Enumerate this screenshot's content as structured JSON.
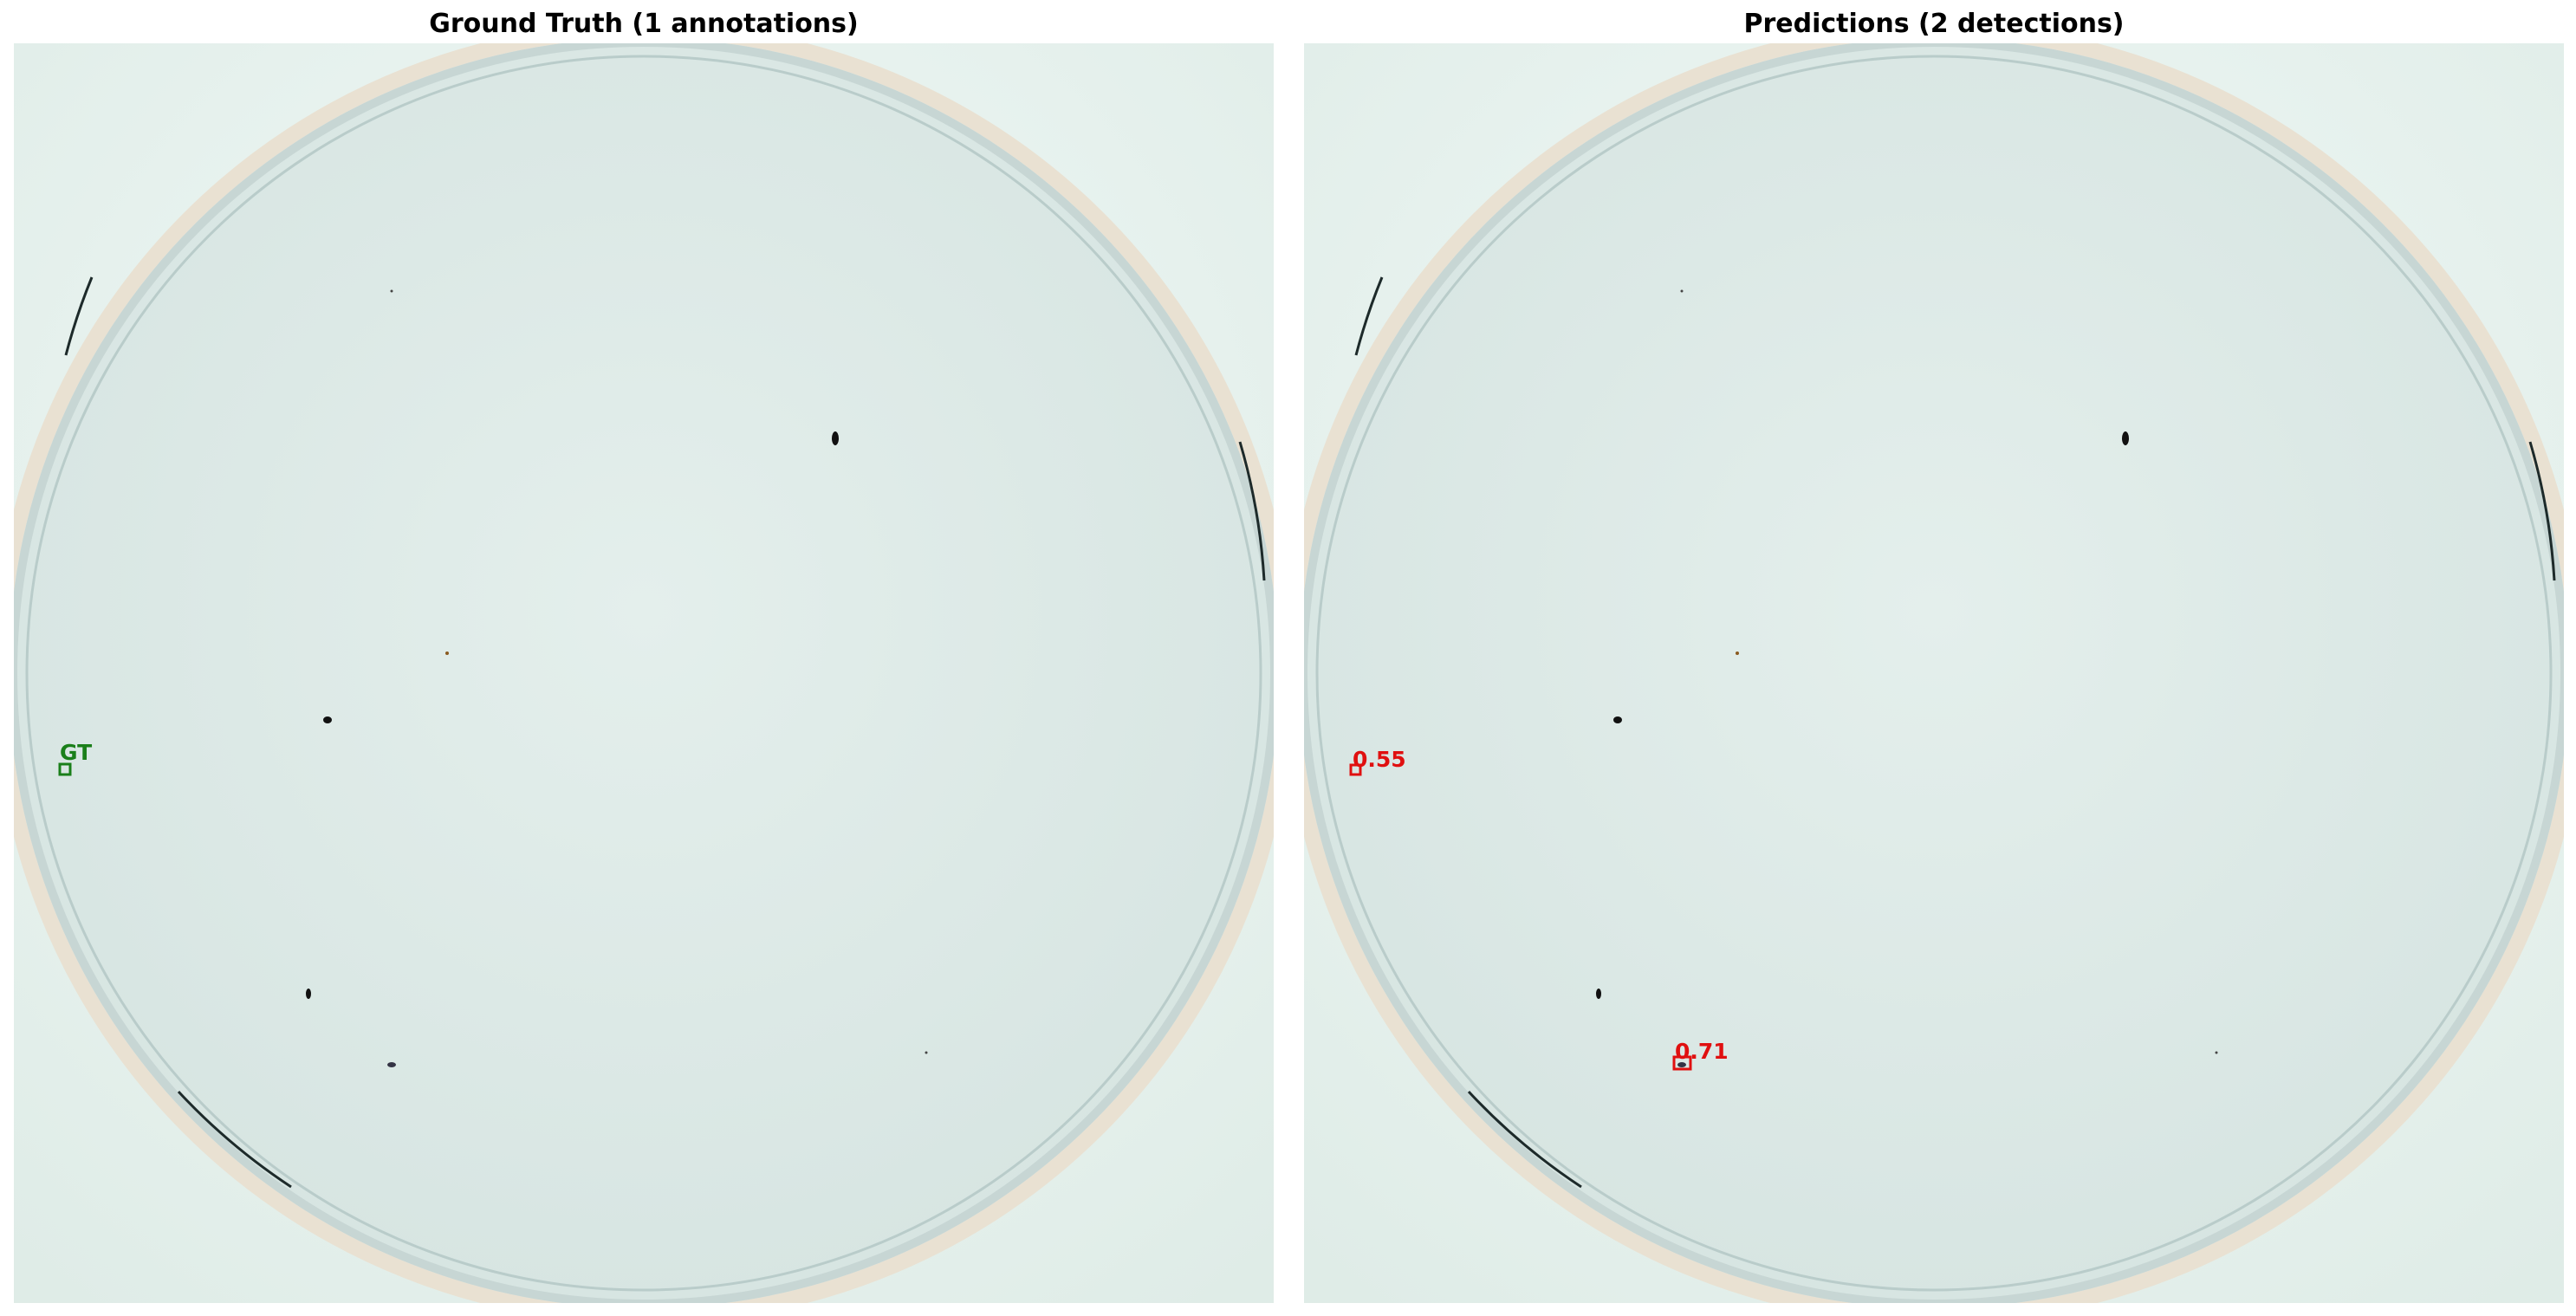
{
  "panels": {
    "ground_truth": {
      "title": "Ground Truth (1 annotations)",
      "box_color": "#1a7f1a",
      "boxes": [
        {
          "label": "GT"
        }
      ]
    },
    "predictions": {
      "title": "Predictions (2 detections)",
      "box_color": "#e01010",
      "boxes": [
        {
          "label": "0.55",
          "score": 0.55
        },
        {
          "label": "0.71",
          "score": 0.71
        }
      ]
    }
  },
  "colors": {
    "page_background": "#ffffff",
    "scan_background": "#e8f2ee",
    "dish_fill": "#dde9e6",
    "dish_rim": "#c7d6d4",
    "specks": "#111111"
  },
  "icons": [
    "petri-dish-image"
  ]
}
